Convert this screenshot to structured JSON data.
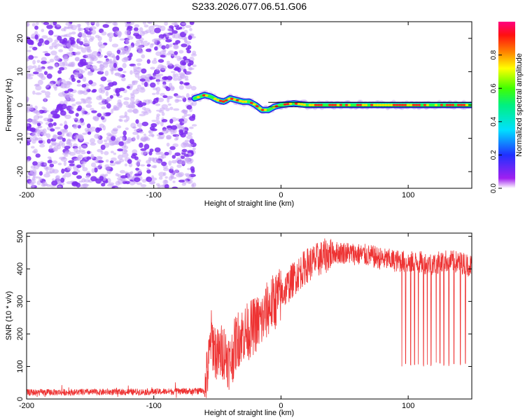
{
  "title": "S233.2026.077.06.51.G06",
  "colors": {
    "snr_line": "#ee3333",
    "spectral_points": "#7d2cf0",
    "spectral_faint": "#c9a8f5"
  },
  "chart_data": [
    {
      "type": "heatmap",
      "xlabel": "Height of straight line (km)",
      "ylabel": "Frequency (Hz)",
      "xlim": [
        -200,
        150
      ],
      "ylim": [
        -25,
        25
      ],
      "xticks": [
        -200,
        -100,
        0,
        100
      ],
      "yticks": [
        -20,
        -10,
        0,
        10,
        20
      ],
      "grid": false,
      "colorbar": {
        "label": "Normalized spectral amplitude",
        "range": [
          0,
          1
        ],
        "ticks": [
          "0.0",
          "0.2",
          "0.4",
          "0.6",
          "0.8"
        ],
        "colormap": "rainbow"
      },
      "regions": [
        {
          "x_range": [
            -200,
            -68
          ],
          "kind": "noise",
          "freq_range": [
            -25,
            25
          ]
        },
        {
          "x_range": [
            -68,
            150
          ],
          "kind": "signal",
          "freq_range": [
            -3,
            4
          ]
        }
      ],
      "signal_track": {
        "x": [
          -68,
          -60,
          -55,
          -50,
          -45,
          -40,
          -35,
          -30,
          -25,
          -20,
          -15,
          -10,
          -5,
          0,
          10,
          20,
          40,
          60,
          80,
          90,
          100,
          110,
          120,
          130,
          150
        ],
        "y": [
          2.0,
          3.0,
          2.5,
          1.5,
          1.0,
          2.0,
          1.5,
          1.0,
          1.0,
          0.0,
          -1.5,
          -1.5,
          -0.5,
          0.0,
          0.5,
          0.0,
          0.0,
          0.0,
          0.0,
          0.0,
          0.0,
          0.0,
          0.0,
          0.0,
          0.0
        ]
      }
    },
    {
      "type": "line",
      "xlabel": "Height of straight line (km)",
      "ylabel": "SNR (10 * v/v)",
      "xlim": [
        -200,
        150
      ],
      "ylim": [
        0,
        510
      ],
      "xticks": [
        -200,
        -100,
        0,
        100
      ],
      "yticks": [
        0,
        100,
        200,
        300,
        400,
        500
      ],
      "grid": false,
      "series": [
        {
          "envelope_x": [
            -200,
            -100,
            -60,
            -57,
            -55,
            -50,
            -45,
            -40,
            -35,
            -30,
            -25,
            -20,
            -15,
            -10,
            -5,
            0,
            10,
            20,
            30,
            40,
            50,
            60,
            70,
            80,
            90,
            100,
            110,
            120,
            130,
            140,
            150
          ],
          "envelope_y": [
            20,
            22,
            25,
            100,
            190,
            130,
            150,
            110,
            180,
            200,
            210,
            230,
            240,
            280,
            300,
            320,
            370,
            410,
            430,
            450,
            450,
            445,
            440,
            430,
            425,
            420,
            420,
            415,
            425,
            420,
            410
          ],
          "dropouts_x": [
            95,
            98,
            102,
            105,
            108,
            112,
            115,
            118,
            122,
            125,
            128,
            132,
            136,
            141,
            145
          ],
          "dropout_value": 100
        }
      ]
    }
  ]
}
